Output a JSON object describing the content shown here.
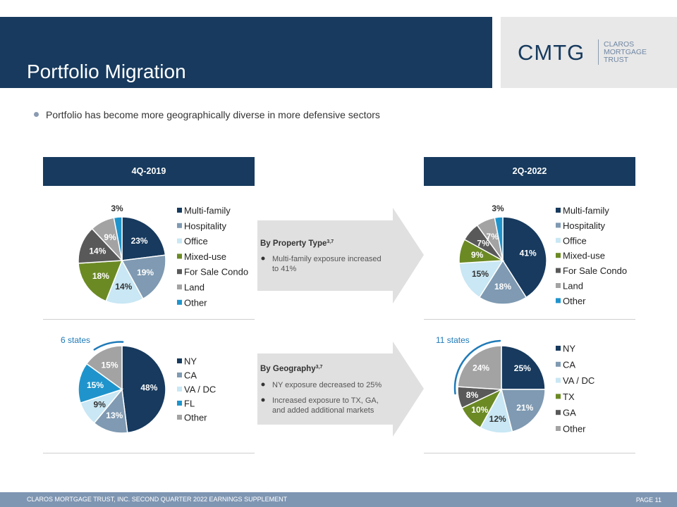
{
  "header": {
    "title": "Portfolio Migration"
  },
  "logo": {
    "main": "CMTG",
    "sub_lines": [
      "CLAROS",
      "MORTGAGE",
      "TRUST"
    ]
  },
  "bullet": "Portfolio has become more geographically diverse in more defensive sectors",
  "panels": {
    "left_header": "4Q-2019",
    "right_header": "2Q-2022"
  },
  "arrows": {
    "property": {
      "title": "By Property Type",
      "superscript": "3,7",
      "bullets": [
        "Multi-family exposure increased to 41%"
      ]
    },
    "geography": {
      "title": "By Geography",
      "superscript": "3,7",
      "bullets": [
        "NY exposure decreased to 25%",
        "Increased exposure to TX, GA, and added additional markets"
      ]
    }
  },
  "states": {
    "left": "6 states",
    "right": "11 states"
  },
  "colors": {
    "navy": "#173a5e",
    "steel": "#7f9ab2",
    "light_blue": "#c9e7f4",
    "green": "#6b8a24",
    "dark_gray": "#595959",
    "gray": "#a3a3a3",
    "bright_blue": "#1f94cc",
    "arc": "#1f7ab8"
  },
  "chart_data": [
    {
      "id": "property-2019",
      "type": "pie",
      "categories": [
        "Multi-family",
        "Hospitality",
        "Office",
        "Mixed-use",
        "For Sale Condo",
        "Land",
        "Other"
      ],
      "values": [
        23,
        19,
        14,
        18,
        14,
        9,
        3
      ],
      "labels": [
        "23%",
        "19%",
        "14%",
        "18%",
        "14%",
        "9%",
        "3%"
      ],
      "colors": [
        "#173a5e",
        "#7f9ab2",
        "#c9e7f4",
        "#6b8a24",
        "#595959",
        "#a3a3a3",
        "#1f94cc"
      ],
      "legend": "right"
    },
    {
      "id": "property-2022",
      "type": "pie",
      "categories": [
        "Multi-family",
        "Hospitality",
        "Office",
        "Mixed-use",
        "For Sale Condo",
        "Land",
        "Other"
      ],
      "values": [
        41,
        18,
        15,
        9,
        7,
        7,
        3
      ],
      "labels": [
        "41%",
        "18%",
        "15%",
        "9%",
        "7%",
        "7%",
        "3%"
      ],
      "colors": [
        "#173a5e",
        "#7f9ab2",
        "#c9e7f4",
        "#6b8a24",
        "#595959",
        "#a3a3a3",
        "#1f94cc"
      ],
      "legend": "right"
    },
    {
      "id": "geography-2019",
      "type": "pie",
      "categories": [
        "NY",
        "CA",
        "VA / DC",
        "FL",
        "Other"
      ],
      "values": [
        48,
        13,
        9,
        15,
        15
      ],
      "labels": [
        "48%",
        "13%",
        "9%",
        "15%",
        "15%"
      ],
      "colors": [
        "#173a5e",
        "#7f9ab2",
        "#c9e7f4",
        "#1f94cc",
        "#a3a3a3"
      ],
      "legend": "right"
    },
    {
      "id": "geography-2022",
      "type": "pie",
      "categories": [
        "NY",
        "CA",
        "VA / DC",
        "TX",
        "GA",
        "Other"
      ],
      "values": [
        25,
        21,
        12,
        10,
        8,
        24
      ],
      "labels": [
        "25%",
        "21%",
        "12%",
        "10%",
        "8%",
        "24%"
      ],
      "colors": [
        "#173a5e",
        "#7f9ab2",
        "#c9e7f4",
        "#6b8a24",
        "#595959",
        "#a3a3a3"
      ],
      "legend": "right"
    }
  ],
  "footer": {
    "left": "CLAROS MORTGAGE TRUST, INC. SECOND QUARTER 2022 EARNINGS SUPPLEMENT",
    "right": "PAGE 11"
  }
}
